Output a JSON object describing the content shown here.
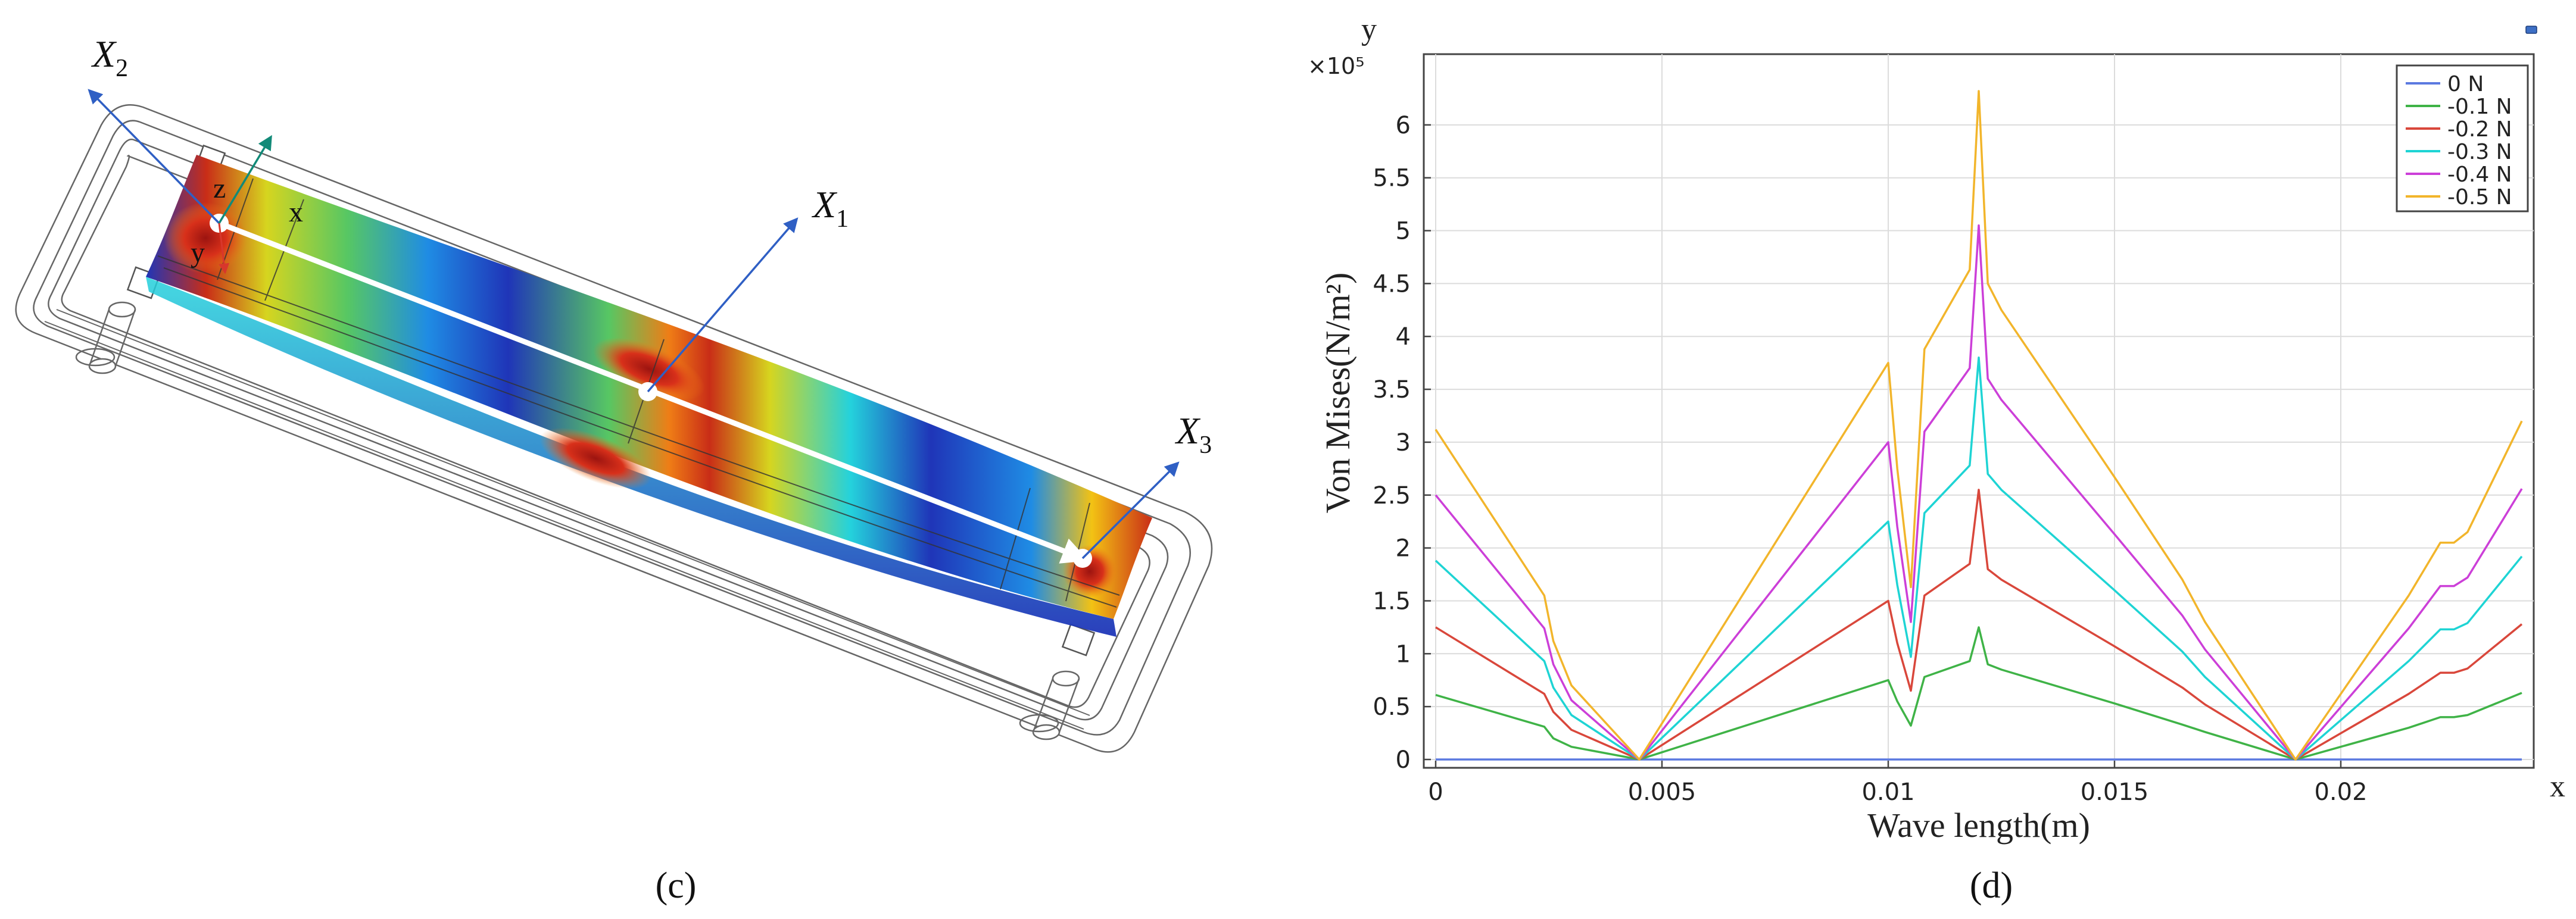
{
  "figure": {
    "left_caption": "(c)",
    "right_caption": "(d)"
  },
  "model": {
    "labels": {
      "x2": {
        "base": "X",
        "sub": "2"
      },
      "x1": {
        "base": "X",
        "sub": "1"
      },
      "x3": {
        "base": "X",
        "sub": "3"
      },
      "local_z": "z",
      "local_y": "y",
      "local_x": "x"
    },
    "colors": {
      "arrow_blue": "#2f5fc4",
      "arrow_teal": "#128a78",
      "arrow_red": "#d8372c",
      "path_white": "#ffffff",
      "frame_gray": "#666666"
    },
    "colormap": [
      "#1f35b8",
      "#1f8ce4",
      "#24d2dc",
      "#57c763",
      "#d6d51f",
      "#f3c214",
      "#ef7d16",
      "#c92d17",
      "#a31512"
    ]
  },
  "chart_data": {
    "type": "line",
    "title": "",
    "xlabel": "Wave length(m)",
    "ylabel": "Von Mises(N/m²)",
    "axis_corner_y": "y",
    "axis_corner_x": "x",
    "y_multiplier": "×10⁵",
    "xlim": [
      0,
      0.024
    ],
    "ylim": [
      0,
      6.5
    ],
    "xticks": [
      0,
      0.005,
      0.01,
      0.015,
      0.02
    ],
    "xtick_labels": [
      "0",
      "0.005",
      "0.01",
      "0.015",
      "0.02"
    ],
    "yticks": [
      0,
      0.5,
      1,
      1.5,
      2,
      2.5,
      3,
      3.5,
      4,
      4.5,
      5,
      5.5,
      6
    ],
    "ytick_labels": [
      "0",
      "0.5",
      "1",
      "1.5",
      "2",
      "2.5",
      "3",
      "3.5",
      "4",
      "4.5",
      "5",
      "5.5",
      "6"
    ],
    "grid": true,
    "legend_position": "top-right",
    "x": [
      0,
      0.0024,
      0.0026,
      0.003,
      0.0045,
      0.01,
      0.0102,
      0.0105,
      0.0108,
      0.0118,
      0.012,
      0.0122,
      0.0125,
      0.015,
      0.0165,
      0.017,
      0.019,
      0.0215,
      0.0222,
      0.0225,
      0.0228,
      0.024
    ],
    "series": [
      {
        "name": "0 N",
        "color": "#5b79e0",
        "values": [
          0,
          0,
          0,
          0,
          0,
          0,
          0,
          0,
          0,
          0,
          0,
          0,
          0,
          0,
          0,
          0,
          0,
          0,
          0,
          0,
          0,
          0
        ]
      },
      {
        "name": "-0.1 N",
        "color": "#3fb347",
        "values": [
          0.61,
          0.31,
          0.2,
          0.12,
          0,
          0.75,
          0.55,
          0.32,
          0.78,
          0.93,
          1.25,
          0.9,
          0.85,
          0.53,
          0.33,
          0.26,
          0,
          0.3,
          0.4,
          0.4,
          0.42,
          0.63
        ]
      },
      {
        "name": "-0.2 N",
        "color": "#d9473b",
        "values": [
          1.25,
          0.62,
          0.45,
          0.28,
          0,
          1.5,
          1.1,
          0.65,
          1.55,
          1.85,
          2.55,
          1.8,
          1.7,
          1.07,
          0.68,
          0.52,
          0,
          0.62,
          0.82,
          0.82,
          0.86,
          1.28
        ]
      },
      {
        "name": "-0.3 N",
        "color": "#1ed4d4",
        "values": [
          1.88,
          0.93,
          0.68,
          0.42,
          0,
          2.25,
          1.65,
          0.97,
          2.33,
          2.78,
          3.8,
          2.7,
          2.55,
          1.6,
          1.02,
          0.78,
          0,
          0.93,
          1.23,
          1.23,
          1.29,
          1.92
        ]
      },
      {
        "name": "-0.4 N",
        "color": "#cc3fd8",
        "values": [
          2.5,
          1.24,
          0.9,
          0.56,
          0,
          3.0,
          2.2,
          1.3,
          3.1,
          3.7,
          5.05,
          3.6,
          3.4,
          2.13,
          1.36,
          1.04,
          0,
          1.24,
          1.64,
          1.64,
          1.72,
          2.56
        ]
      },
      {
        "name": "-0.5 N",
        "color": "#f2b52b",
        "values": [
          3.12,
          1.55,
          1.12,
          0.7,
          0,
          3.75,
          2.75,
          1.63,
          3.88,
          4.63,
          6.32,
          4.5,
          4.25,
          2.67,
          1.7,
          1.3,
          0,
          1.55,
          2.05,
          2.05,
          2.15,
          3.2
        ]
      }
    ]
  }
}
